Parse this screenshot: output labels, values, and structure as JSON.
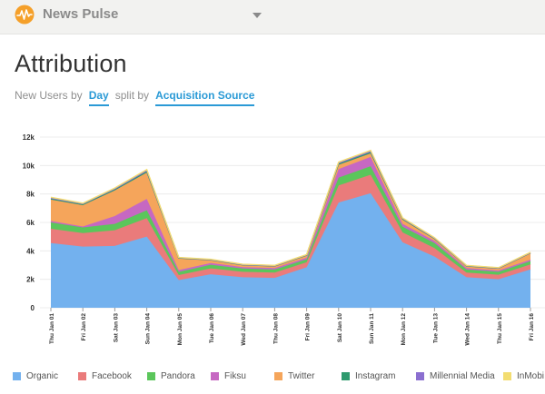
{
  "header": {
    "app_name": "News Pulse",
    "logo_icon": "pulse-icon",
    "dropdown_icon": "caret-down-icon",
    "logo_color": "#f5a02a"
  },
  "page": {
    "title": "Attribution"
  },
  "query": {
    "prefix": "New Users by",
    "interval": "Day",
    "split_label": "split by",
    "split_value": "Acquisition Source"
  },
  "chart_data": {
    "type": "area",
    "stacked": true,
    "x": [
      "Thu Jan 01",
      "Fri Jan 02",
      "Sat Jan 03",
      "Sun Jan 04",
      "Mon Jan 05",
      "Tue Jan 06",
      "Wed Jan 07",
      "Thu Jan 08",
      "Fri Jan 09",
      "Sat Jan 10",
      "Sun Jan 11",
      "Mon Jan 12",
      "Tue Jan 13",
      "Wed Jan 14",
      "Thu Jan 15",
      "Fri Jan 16"
    ],
    "ylim": [
      0,
      12000
    ],
    "yticks": [
      "0",
      "2k",
      "4k",
      "6k",
      "8k",
      "10k",
      "12k"
    ],
    "ytick_values": [
      0,
      2000,
      4000,
      6000,
      8000,
      10000,
      12000
    ],
    "series": [
      {
        "name": "Organic",
        "color": "#73b1ee",
        "values": [
          4550,
          4300,
          4350,
          5000,
          1950,
          2350,
          2150,
          2100,
          2850,
          7400,
          8050,
          4600,
          3600,
          2150,
          2000,
          2700
        ]
      },
      {
        "name": "Facebook",
        "color": "#ea7b7b",
        "values": [
          1000,
          950,
          1100,
          1300,
          350,
          420,
          380,
          370,
          350,
          1200,
          1300,
          700,
          600,
          320,
          320,
          350
        ]
      },
      {
        "name": "Pandora",
        "color": "#5bc65b",
        "values": [
          450,
          400,
          450,
          550,
          220,
          250,
          230,
          220,
          210,
          550,
          600,
          400,
          350,
          220,
          210,
          230
        ]
      },
      {
        "name": "Fiksu",
        "color": "#c668c2",
        "values": [
          100,
          60,
          550,
          800,
          130,
          120,
          100,
          100,
          110,
          600,
          650,
          200,
          150,
          100,
          90,
          100
        ]
      },
      {
        "name": "Twitter",
        "color": "#f5a55b",
        "values": [
          1500,
          1500,
          1800,
          1850,
          820,
          200,
          130,
          120,
          150,
          300,
          250,
          300,
          130,
          120,
          130,
          450
        ]
      },
      {
        "name": "Instagram",
        "color": "#2e9a6e",
        "values": [
          70,
          60,
          70,
          90,
          30,
          30,
          30,
          30,
          30,
          80,
          90,
          50,
          40,
          30,
          30,
          30
        ]
      },
      {
        "name": "Millennial Media",
        "color": "#8b6fd0",
        "values": [
          60,
          50,
          60,
          80,
          20,
          20,
          20,
          20,
          20,
          70,
          80,
          40,
          30,
          20,
          20,
          20
        ]
      },
      {
        "name": "InMobi",
        "color": "#f3dd71",
        "values": [
          40,
          30,
          40,
          50,
          20,
          20,
          20,
          20,
          20,
          40,
          50,
          30,
          30,
          20,
          20,
          20
        ]
      }
    ]
  }
}
